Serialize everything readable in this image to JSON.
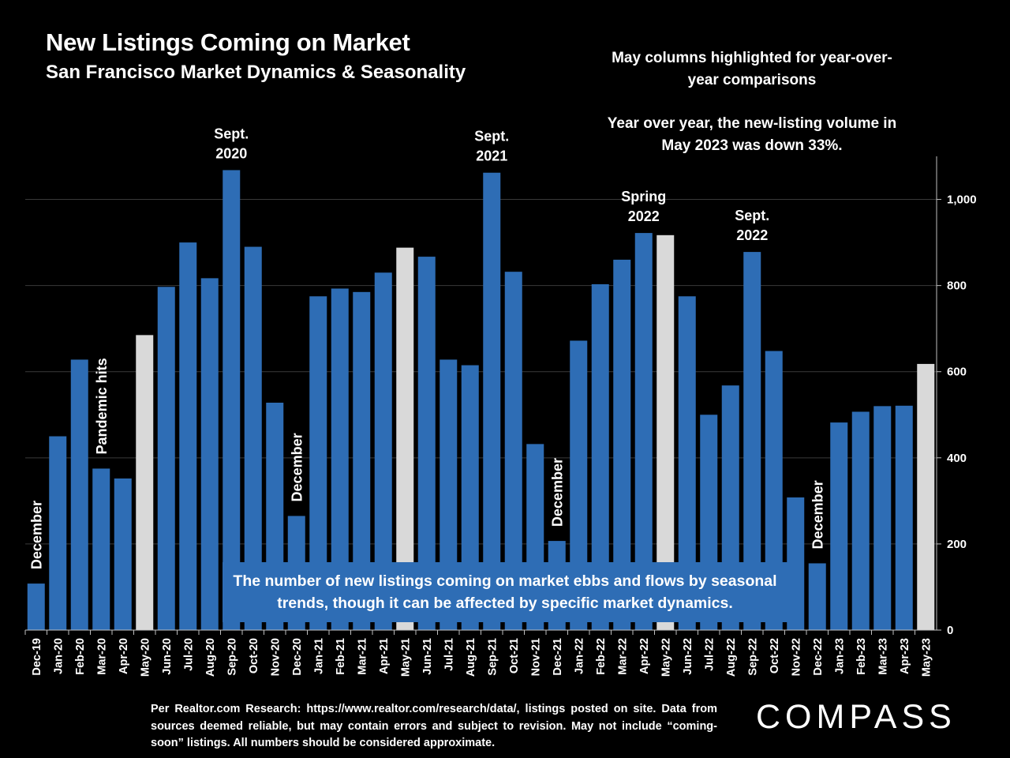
{
  "header": {
    "title": "New Listings Coming on Market",
    "subtitle": "San Francisco Market Dynamics & Seasonality"
  },
  "notes": {
    "may_note": "May columns highlighted for year-over-year comparisons",
    "yoy_note": "Year over year, the new-listing volume in May 2023 was down 33%."
  },
  "callout": "The number of new listings coming on market ebbs and flows by seasonal trends, though it can be affected by specific market dynamics.",
  "footer": {
    "source": "Per Realtor.com Research: https://www.realtor.com/research/data/, listings posted on site. Data from sources deemed reliable, but may contain errors and subject to revision. May not include “coming-soon” listings. All numbers should be considered approximate.",
    "logo": "COMPASS"
  },
  "chart_data": {
    "type": "bar",
    "title": "New Listings Coming on Market",
    "subtitle": "San Francisco Market Dynamics & Seasonality",
    "xlabel": "",
    "ylabel": "",
    "ylim": [
      0,
      1100
    ],
    "y_axis_side": "right",
    "y_ticks": [
      0,
      200,
      400,
      600,
      800,
      1000
    ],
    "y_tick_labels": [
      "0",
      "200",
      "400",
      "600",
      "800",
      "1,000"
    ],
    "grid": true,
    "legend": "none",
    "colors": {
      "bar": "#2e6db5",
      "highlight": "#d9d9d9",
      "background": "#000000",
      "grid": "#3a3a3a"
    },
    "categories": [
      "Dec-19",
      "Jan-20",
      "Feb-20",
      "Mar-20",
      "Apr-20",
      "May-20",
      "Jun-20",
      "Jul-20",
      "Aug-20",
      "Sep-20",
      "Oct-20",
      "Nov-20",
      "Dec-20",
      "Jan-21",
      "Feb-21",
      "Mar-21",
      "Apr-21",
      "May-21",
      "Jun-21",
      "Jul-21",
      "Aug-21",
      "Sep-21",
      "Oct-21",
      "Nov-21",
      "Dec-21",
      "Jan-22",
      "Feb-22",
      "Mar-22",
      "Apr-22",
      "May-22",
      "Jun-22",
      "Jul-22",
      "Aug-22",
      "Sep-22",
      "Oct-22",
      "Nov-22",
      "Dec-22",
      "Jan-23",
      "Feb-23",
      "Mar-23",
      "Apr-23",
      "May-23"
    ],
    "values": [
      108,
      450,
      628,
      375,
      352,
      685,
      797,
      900,
      817,
      1068,
      890,
      528,
      265,
      775,
      793,
      785,
      830,
      888,
      867,
      628,
      615,
      1062,
      832,
      432,
      207,
      672,
      803,
      860,
      922,
      917,
      775,
      500,
      568,
      878,
      648,
      308,
      155,
      482,
      507,
      520,
      521,
      618
    ],
    "highlighted": [
      "May-20",
      "May-21",
      "May-22",
      "May-23"
    ],
    "annotations": [
      {
        "category": "Dec-19",
        "text": "December",
        "orientation": "vertical"
      },
      {
        "category": "Mar-20",
        "text": "Pandemic hits",
        "orientation": "vertical"
      },
      {
        "category": "Sep-20",
        "text": "Sept. 2020",
        "orientation": "horizontal"
      },
      {
        "category": "Dec-20",
        "text": "December",
        "orientation": "vertical"
      },
      {
        "category": "Sep-21",
        "text": "Sept. 2021",
        "orientation": "horizontal"
      },
      {
        "category": "Dec-21",
        "text": "December",
        "orientation": "vertical"
      },
      {
        "category": "Apr-22",
        "text": "Spring 2022",
        "orientation": "horizontal"
      },
      {
        "category": "Sep-22",
        "text": "Sept. 2022",
        "orientation": "horizontal"
      },
      {
        "category": "Dec-22",
        "text": "December",
        "orientation": "vertical"
      }
    ]
  }
}
